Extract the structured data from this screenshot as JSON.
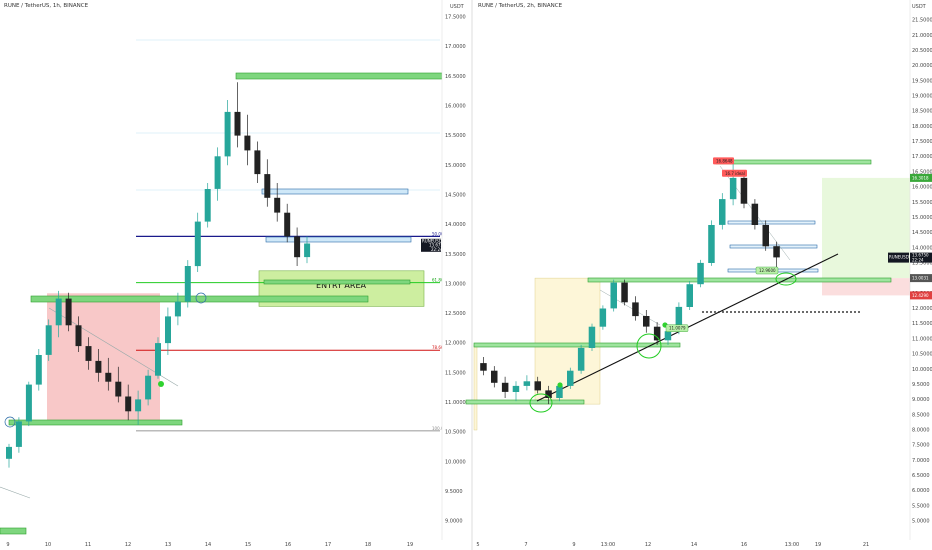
{
  "chart_data": [
    {
      "type": "candlestick",
      "title": "RUNE / TetherUS, 1h, BINANCE",
      "price_unit": "USDT",
      "y_ticks": [
        "9.0000",
        "9.5000",
        "10.0000",
        "10.5000",
        "11.0000",
        "11.5000",
        "12.0000",
        "12.5000",
        "13.0000",
        "13.5000",
        "14.0000",
        "14.5000",
        "15.0000",
        "15.5000",
        "16.0000",
        "16.5000",
        "17.0000",
        "17.5000"
      ],
      "ylim": [
        8.85,
        17.75
      ],
      "x_ticks": [
        "9",
        "10",
        "11",
        "12",
        "13",
        "14",
        "15",
        "16",
        "17",
        "18",
        "19"
      ],
      "last_price": {
        "symbol": "RUNEUSDT",
        "value": "13.6750",
        "countdown": "22:24"
      },
      "fib_labels": [
        {
          "text": "50.00%",
          "price": 13.8,
          "color": "#1a1a8c"
        },
        {
          "text": "61.80%",
          "price": 13.02,
          "color": "#10a010"
        },
        {
          "text": "78.60%",
          "price": 11.88,
          "color": "#d01010"
        },
        {
          "text": "100.00",
          "price": 10.52,
          "color": "#888888"
        }
      ],
      "zones": [
        {
          "label": "",
          "from": 10.62,
          "to": 12.84,
          "color": "#f8c8c8"
        },
        {
          "label": "ENTRY AREA",
          "from": 12.62,
          "to": 13.22,
          "color": "#cdeea0"
        }
      ],
      "candles": [
        {
          "x": "9",
          "o": 10.05,
          "h": 10.3,
          "l": 9.9,
          "c": 10.25
        },
        {
          "x": "9",
          "o": 10.25,
          "h": 10.75,
          "l": 10.15,
          "c": 10.68
        },
        {
          "x": "9",
          "o": 10.68,
          "h": 11.35,
          "l": 10.6,
          "c": 11.3
        },
        {
          "x": "9",
          "o": 11.3,
          "h": 11.9,
          "l": 11.2,
          "c": 11.8
        },
        {
          "x": "10",
          "o": 11.8,
          "h": 12.4,
          "l": 11.7,
          "c": 12.3
        },
        {
          "x": "10",
          "o": 12.3,
          "h": 12.88,
          "l": 12.1,
          "c": 12.75
        },
        {
          "x": "10",
          "o": 12.75,
          "h": 12.85,
          "l": 12.2,
          "c": 12.3
        },
        {
          "x": "10",
          "o": 12.3,
          "h": 12.45,
          "l": 11.85,
          "c": 11.95
        },
        {
          "x": "11",
          "o": 11.95,
          "h": 12.1,
          "l": 11.55,
          "c": 11.7
        },
        {
          "x": "11",
          "o": 11.7,
          "h": 11.9,
          "l": 11.35,
          "c": 11.5
        },
        {
          "x": "11",
          "o": 11.5,
          "h": 11.75,
          "l": 11.2,
          "c": 11.35
        },
        {
          "x": "11",
          "o": 11.35,
          "h": 11.6,
          "l": 11.0,
          "c": 11.1
        },
        {
          "x": "12",
          "o": 11.1,
          "h": 11.3,
          "l": 10.7,
          "c": 10.85
        },
        {
          "x": "12",
          "o": 10.85,
          "h": 11.2,
          "l": 10.62,
          "c": 11.05
        },
        {
          "x": "12",
          "o": 11.05,
          "h": 11.55,
          "l": 10.95,
          "c": 11.45
        },
        {
          "x": "12",
          "o": 11.45,
          "h": 12.1,
          "l": 11.4,
          "c": 12.0
        },
        {
          "x": "13",
          "o": 12.0,
          "h": 12.6,
          "l": 11.8,
          "c": 12.45
        },
        {
          "x": "13",
          "o": 12.45,
          "h": 12.85,
          "l": 12.3,
          "c": 12.7
        },
        {
          "x": "13",
          "o": 12.7,
          "h": 13.4,
          "l": 12.6,
          "c": 13.3
        },
        {
          "x": "13",
          "o": 13.3,
          "h": 14.2,
          "l": 13.2,
          "c": 14.05
        },
        {
          "x": "14",
          "o": 14.05,
          "h": 14.7,
          "l": 13.95,
          "c": 14.6
        },
        {
          "x": "14",
          "o": 14.6,
          "h": 15.3,
          "l": 14.4,
          "c": 15.15
        },
        {
          "x": "14",
          "o": 15.15,
          "h": 16.1,
          "l": 15.0,
          "c": 15.9
        },
        {
          "x": "14",
          "o": 15.9,
          "h": 16.4,
          "l": 15.3,
          "c": 15.5
        },
        {
          "x": "15",
          "o": 15.5,
          "h": 15.85,
          "l": 15.0,
          "c": 15.25
        },
        {
          "x": "15",
          "o": 15.25,
          "h": 15.4,
          "l": 14.7,
          "c": 14.85
        },
        {
          "x": "15",
          "o": 14.85,
          "h": 15.1,
          "l": 14.3,
          "c": 14.45
        },
        {
          "x": "15",
          "o": 14.45,
          "h": 14.7,
          "l": 14.05,
          "c": 14.2
        },
        {
          "x": "16",
          "o": 14.2,
          "h": 14.35,
          "l": 13.7,
          "c": 13.8
        },
        {
          "x": "16",
          "o": 13.8,
          "h": 13.95,
          "l": 13.3,
          "c": 13.45
        },
        {
          "x": "16",
          "o": 13.45,
          "h": 13.8,
          "l": 13.35,
          "c": 13.68
        }
      ]
    },
    {
      "type": "candlestick",
      "title": "RUNE / TetherUS, 2h, BINANCE",
      "price_unit": "USDT",
      "y_ticks": [
        "5.0000",
        "5.5000",
        "6.0000",
        "6.5000",
        "7.0000",
        "7.5000",
        "8.0000",
        "8.5000",
        "9.0000",
        "9.5000",
        "10.0000",
        "10.5000",
        "11.0000",
        "11.5000",
        "12.0000",
        "12.5000",
        "13.0000",
        "13.5000",
        "14.0000",
        "14.5000",
        "15.0000",
        "15.5000",
        "16.0000",
        "16.5000",
        "17.0000",
        "17.5000",
        "18.0000",
        "18.5000",
        "19.0000",
        "19.5000",
        "20.0000",
        "20.5000",
        "21.0000",
        "21.5000"
      ],
      "ylim": [
        4.9,
        22.05
      ],
      "x_ticks": [
        "5",
        "7",
        "9",
        "13:00",
        "12",
        "14",
        "16",
        "13:00",
        "19",
        "21"
      ],
      "last_price": {
        "symbol": "RUNEUSDT",
        "value": "13.6750",
        "countdown": "22:24"
      },
      "price_tags": [
        {
          "text": "16.3018",
          "price": 16.3,
          "color": "#3aa83a"
        },
        {
          "text": "13.0031",
          "price": 13.0,
          "color": "#555555"
        },
        {
          "text": "12.4290",
          "price": 12.43,
          "color": "#e04040"
        }
      ],
      "annotations": [
        {
          "text": "16.8648",
          "price": 16.86,
          "color": "#ff5a5a"
        },
        {
          "text": "16.7 ideal",
          "price": 16.45,
          "color": "#ff5a5a"
        },
        {
          "text": "12.9600",
          "price": 13.25,
          "color": "#b8f0a8"
        },
        {
          "text": "11.0079",
          "price": 11.35,
          "color": "#b8f0a8"
        }
      ],
      "zones": [
        {
          "label": "",
          "from": 8.85,
          "to": 13.0,
          "color": "#fdf6d8"
        },
        {
          "label": "",
          "from": 13.0,
          "to": 16.3,
          "color": "#e8f8dc"
        },
        {
          "label": "",
          "from": 12.43,
          "to": 13.0,
          "color": "#fbdede"
        }
      ],
      "candles": [
        {
          "x": "5",
          "o": 10.2,
          "h": 10.4,
          "l": 9.8,
          "c": 9.95
        },
        {
          "x": "5",
          "o": 9.95,
          "h": 10.1,
          "l": 9.4,
          "c": 9.55
        },
        {
          "x": "5",
          "o": 9.55,
          "h": 9.75,
          "l": 9.05,
          "c": 9.25
        },
        {
          "x": "5",
          "o": 9.25,
          "h": 9.6,
          "l": 8.95,
          "c": 9.45
        },
        {
          "x": "7",
          "o": 9.45,
          "h": 9.8,
          "l": 9.3,
          "c": 9.6
        },
        {
          "x": "7",
          "o": 9.6,
          "h": 9.75,
          "l": 9.2,
          "c": 9.3
        },
        {
          "x": "7",
          "o": 9.3,
          "h": 9.45,
          "l": 8.85,
          "c": 9.05
        },
        {
          "x": "7",
          "o": 9.05,
          "h": 9.55,
          "l": 8.95,
          "c": 9.45
        },
        {
          "x": "9",
          "o": 9.45,
          "h": 10.05,
          "l": 9.35,
          "c": 9.95
        },
        {
          "x": "9",
          "o": 9.95,
          "h": 10.8,
          "l": 9.85,
          "c": 10.7
        },
        {
          "x": "9",
          "o": 10.7,
          "h": 11.5,
          "l": 10.6,
          "c": 11.4
        },
        {
          "x": "9",
          "o": 11.4,
          "h": 12.1,
          "l": 11.3,
          "c": 12.0
        },
        {
          "x": "13:00",
          "o": 12.0,
          "h": 12.95,
          "l": 11.9,
          "c": 12.85
        },
        {
          "x": "13:00",
          "o": 12.85,
          "h": 12.95,
          "l": 12.1,
          "c": 12.2
        },
        {
          "x": "13:00",
          "o": 12.2,
          "h": 12.4,
          "l": 11.6,
          "c": 11.75
        },
        {
          "x": "13:00",
          "o": 11.75,
          "h": 11.95,
          "l": 11.2,
          "c": 11.4
        },
        {
          "x": "12",
          "o": 11.4,
          "h": 11.55,
          "l": 10.8,
          "c": 10.95
        },
        {
          "x": "12",
          "o": 10.95,
          "h": 11.35,
          "l": 10.8,
          "c": 11.25
        },
        {
          "x": "12",
          "o": 11.25,
          "h": 12.2,
          "l": 11.15,
          "c": 12.05
        },
        {
          "x": "12",
          "o": 12.05,
          "h": 12.9,
          "l": 11.95,
          "c": 12.8
        },
        {
          "x": "14",
          "o": 12.8,
          "h": 13.6,
          "l": 12.7,
          "c": 13.5
        },
        {
          "x": "14",
          "o": 13.5,
          "h": 14.9,
          "l": 13.4,
          "c": 14.75
        },
        {
          "x": "14",
          "o": 14.75,
          "h": 15.8,
          "l": 14.6,
          "c": 15.6
        },
        {
          "x": "14",
          "o": 15.6,
          "h": 16.86,
          "l": 15.4,
          "c": 16.3
        },
        {
          "x": "16",
          "o": 16.3,
          "h": 16.45,
          "l": 15.3,
          "c": 15.45
        },
        {
          "x": "16",
          "o": 15.45,
          "h": 15.6,
          "l": 14.6,
          "c": 14.75
        },
        {
          "x": "16",
          "o": 14.75,
          "h": 14.9,
          "l": 13.9,
          "c": 14.05
        },
        {
          "x": "16",
          "o": 14.05,
          "h": 14.2,
          "l": 13.25,
          "c": 13.68
        }
      ]
    }
  ]
}
